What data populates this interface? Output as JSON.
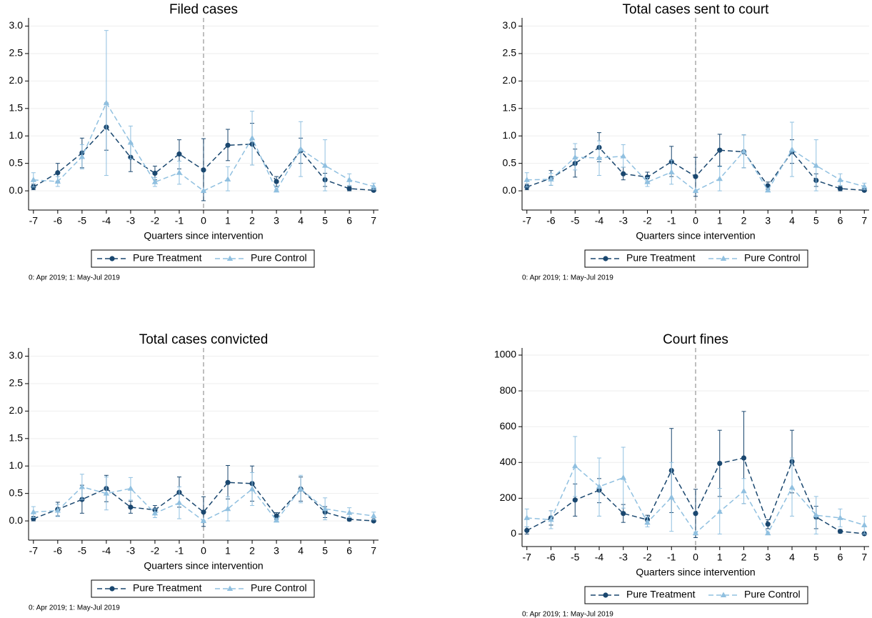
{
  "chart_data": [
    {
      "type": "line",
      "title": "Filed cases",
      "x_label": "Quarters since intervention",
      "note": "0: Apr 2019; 1: May-Jul 2019",
      "x": [
        -7,
        -6,
        -5,
        -4,
        -3,
        -2,
        -1,
        0,
        1,
        2,
        3,
        4,
        5,
        6,
        7
      ],
      "xlim": [
        -7.2,
        7.2
      ],
      "xticks": [
        -7,
        -6,
        -5,
        -4,
        -3,
        -2,
        -1,
        0,
        1,
        2,
        3,
        4,
        5,
        6,
        7
      ],
      "ylim": [
        -0.35,
        3.15
      ],
      "yticks": [
        {
          "value": 0,
          "label": "0.0"
        },
        {
          "value": 0.5,
          "label": "0.5"
        },
        {
          "value": 1,
          "label": "1.0"
        },
        {
          "value": 1.5,
          "label": "1.5"
        },
        {
          "value": 2,
          "label": "2.0"
        },
        {
          "value": 2.5,
          "label": "2.5"
        },
        {
          "value": 3,
          "label": "3.0"
        }
      ],
      "grid": true,
      "vline": 0,
      "series": [
        {
          "name": "Pure Treatment",
          "color": "#1a476f",
          "marker": "circle",
          "values": [
            0.07,
            0.33,
            0.69,
            1.16,
            0.61,
            0.32,
            0.67,
            0.38,
            0.83,
            0.85,
            0.17,
            0.73,
            0.2,
            0.04,
            0.01
          ],
          "lower": [
            0.02,
            0.17,
            0.42,
            0.74,
            0.35,
            0.2,
            0.4,
            -0.18,
            0.55,
            0.47,
            0.08,
            0.5,
            0.08,
            0,
            -0.01
          ],
          "upper": [
            0.12,
            0.5,
            0.96,
            1.6,
            0.87,
            0.45,
            0.93,
            0.95,
            1.12,
            1.23,
            0.26,
            0.96,
            0.32,
            0.08,
            0.03
          ]
        },
        {
          "name": "Pure Control",
          "color": "#90c0e0",
          "marker": "triangle",
          "values": [
            0.2,
            0.17,
            0.62,
            1.6,
            0.88,
            0.16,
            0.33,
            0,
            0.21,
            0.96,
            0.01,
            0.76,
            0.46,
            0.2,
            0.08
          ],
          "lower": [
            0.07,
            0.08,
            0.4,
            0.28,
            0.58,
            0.08,
            0.12,
            0,
            0,
            0.47,
            0,
            0.26,
            0,
            0.1,
            0.02
          ],
          "upper": [
            0.33,
            0.26,
            0.84,
            2.92,
            1.18,
            0.24,
            0.54,
            0,
            0.44,
            1.45,
            0.02,
            1.26,
            0.93,
            0.31,
            0.14
          ]
        }
      ]
    },
    {
      "type": "line",
      "title": "Total cases sent to court",
      "x_label": "Quarters since intervention",
      "note": "0: Apr 2019; 1: May-Jul 2019",
      "x": [
        -7,
        -6,
        -5,
        -4,
        -3,
        -2,
        -1,
        0,
        1,
        2,
        3,
        4,
        5,
        6,
        7
      ],
      "xlim": [
        -7.2,
        7.2
      ],
      "xticks": [
        -7,
        -6,
        -5,
        -4,
        -3,
        -2,
        -1,
        0,
        1,
        2,
        3,
        4,
        5,
        6,
        7
      ],
      "ylim": [
        -0.35,
        3.15
      ],
      "yticks": [
        {
          "value": 0,
          "label": "0.0"
        },
        {
          "value": 0.5,
          "label": "0.5"
        },
        {
          "value": 1,
          "label": "1.0"
        },
        {
          "value": 1.5,
          "label": "1.5"
        },
        {
          "value": 2,
          "label": "2.0"
        },
        {
          "value": 2.5,
          "label": "2.5"
        },
        {
          "value": 3,
          "label": "3.0"
        }
      ],
      "grid": true,
      "vline": 0,
      "series": [
        {
          "name": "Pure Treatment",
          "color": "#1a476f",
          "marker": "circle",
          "values": [
            0.07,
            0.23,
            0.5,
            0.79,
            0.31,
            0.25,
            0.53,
            0.26,
            0.74,
            0.71,
            0.09,
            0.71,
            0.19,
            0.04,
            0.01
          ],
          "lower": [
            0.02,
            0.1,
            0.25,
            0.53,
            0.2,
            0.16,
            0.26,
            -0.1,
            0.45,
            0.42,
            0.03,
            0.5,
            0.08,
            0,
            -0.01
          ],
          "upper": [
            0.12,
            0.37,
            0.76,
            1.06,
            0.43,
            0.34,
            0.81,
            0.61,
            1.03,
            1.02,
            0.16,
            0.93,
            0.31,
            0.08,
            0.03
          ]
        },
        {
          "name": "Pure Control",
          "color": "#90c0e0",
          "marker": "triangle",
          "values": [
            0.2,
            0.21,
            0.61,
            0.6,
            0.63,
            0.16,
            0.34,
            0,
            0.22,
            0.72,
            0.01,
            0.75,
            0.46,
            0.2,
            0.08
          ],
          "lower": [
            0.07,
            0.1,
            0.38,
            0.28,
            0.43,
            0.08,
            0.12,
            0,
            0,
            0.42,
            0,
            0.26,
            0,
            0.1,
            0.02
          ],
          "upper": [
            0.33,
            0.32,
            0.86,
            0.91,
            0.84,
            0.24,
            0.56,
            0,
            0.44,
            1.02,
            0.02,
            1.25,
            0.93,
            0.31,
            0.14
          ]
        }
      ]
    },
    {
      "type": "line",
      "title": "Total cases convicted",
      "x_label": "Quarters since intervention",
      "note": "0: Apr 2019; 1: May-Jul 2019",
      "x": [
        -7,
        -6,
        -5,
        -4,
        -3,
        -2,
        -1,
        0,
        1,
        2,
        3,
        4,
        5,
        6,
        7
      ],
      "xlim": [
        -7.2,
        7.2
      ],
      "xticks": [
        -7,
        -6,
        -5,
        -4,
        -3,
        -2,
        -1,
        0,
        1,
        2,
        3,
        4,
        5,
        6,
        7
      ],
      "ylim": [
        -0.35,
        3.15
      ],
      "yticks": [
        {
          "value": 0,
          "label": "0.0"
        },
        {
          "value": 0.5,
          "label": "0.5"
        },
        {
          "value": 1,
          "label": "1.0"
        },
        {
          "value": 1.5,
          "label": "1.5"
        },
        {
          "value": 2,
          "label": "2.0"
        },
        {
          "value": 2.5,
          "label": "2.5"
        },
        {
          "value": 3,
          "label": "3.0"
        }
      ],
      "grid": true,
      "vline": 0,
      "series": [
        {
          "name": "Pure Treatment",
          "color": "#1a476f",
          "marker": "circle",
          "values": [
            0.04,
            0.21,
            0.39,
            0.59,
            0.25,
            0.2,
            0.52,
            0.16,
            0.7,
            0.68,
            0.09,
            0.58,
            0.16,
            0.03,
            0
          ],
          "lower": [
            0,
            0.09,
            0.14,
            0.35,
            0.14,
            0.12,
            0.25,
            -0.1,
            0.4,
            0.36,
            0.03,
            0.36,
            0.06,
            0,
            0
          ],
          "upper": [
            0.08,
            0.34,
            0.65,
            0.83,
            0.36,
            0.28,
            0.8,
            0.44,
            1.01,
            1,
            0.15,
            0.8,
            0.26,
            0.06,
            0.01
          ]
        },
        {
          "name": "Pure Control",
          "color": "#90c0e0",
          "marker": "triangle",
          "values": [
            0.16,
            0.19,
            0.62,
            0.5,
            0.59,
            0.14,
            0.33,
            0,
            0.22,
            0.58,
            0.01,
            0.58,
            0.22,
            0.15,
            0.09
          ],
          "lower": [
            0.06,
            0.08,
            0.39,
            0.2,
            0.38,
            0.06,
            0.04,
            0,
            0,
            0.28,
            0,
            0.33,
            0.02,
            0.06,
            0.02
          ],
          "upper": [
            0.26,
            0.3,
            0.85,
            0.8,
            0.79,
            0.22,
            0.62,
            0,
            0.44,
            0.88,
            0.02,
            0.83,
            0.42,
            0.24,
            0.16
          ]
        }
      ]
    },
    {
      "type": "line",
      "title": "Court fines",
      "x_label": "Quarters since intervention",
      "note": "0: Apr 2019; 1: May-Jul 2019",
      "x": [
        -7,
        -6,
        -5,
        -4,
        -3,
        -2,
        -1,
        0,
        1,
        2,
        3,
        4,
        5,
        6,
        7
      ],
      "xlim": [
        -7.2,
        7.2
      ],
      "xticks": [
        -7,
        -6,
        -5,
        -4,
        -3,
        -2,
        -1,
        0,
        1,
        2,
        3,
        4,
        5,
        6,
        7
      ],
      "ylim": [
        -70,
        1040
      ],
      "yticks": [
        0,
        200,
        400,
        600,
        800,
        1000
      ],
      "grid": true,
      "vline": 0,
      "series": [
        {
          "name": "Pure Treatment",
          "color": "#1a476f",
          "marker": "circle",
          "values": [
            20,
            90,
            190,
            245,
            115,
            80,
            355,
            115,
            395,
            425,
            55,
            405,
            95,
            15,
            2
          ],
          "lower": [
            0,
            50,
            100,
            175,
            65,
            55,
            120,
            -20,
            210,
            170,
            30,
            230,
            30,
            5,
            0
          ],
          "upper": [
            40,
            130,
            280,
            310,
            165,
            105,
            590,
            250,
            580,
            685,
            80,
            580,
            155,
            25,
            5
          ]
        },
        {
          "name": "Pure Control",
          "color": "#90c0e0",
          "marker": "triangle",
          "values": [
            90,
            80,
            380,
            265,
            315,
            65,
            205,
            5,
            125,
            240,
            5,
            260,
            105,
            90,
            50
          ],
          "lower": [
            40,
            30,
            210,
            100,
            145,
            40,
            15,
            0,
            0,
            170,
            0,
            100,
            0,
            40,
            0
          ],
          "upper": [
            140,
            130,
            545,
            425,
            485,
            95,
            400,
            10,
            255,
            310,
            10,
            425,
            210,
            140,
            100
          ]
        }
      ]
    }
  ]
}
